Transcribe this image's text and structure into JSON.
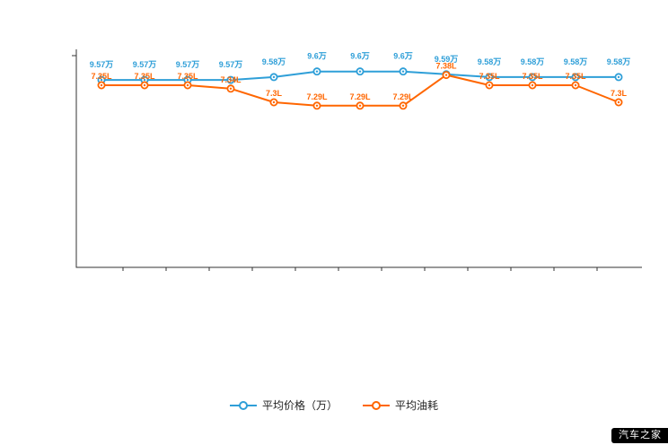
{
  "watermark": {
    "text": "汽车之家"
  },
  "legend": [
    {
      "label": "平均价格（万）",
      "color": "#2f9fd8"
    },
    {
      "label": "平均油耗",
      "color": "#ff6600"
    }
  ],
  "chart_data": {
    "type": "line",
    "title": "",
    "xlabel": "",
    "ylabel": "",
    "grid": false,
    "legend_position": "bottom",
    "x_axis_labels_visible": false,
    "points_count": 13,
    "series": [
      {
        "name": "平均价格（万）",
        "color": "#2f9fd8",
        "unit": "万",
        "ylim": [
          9.5,
          9.65
        ],
        "values": [
          9.57,
          9.57,
          9.57,
          9.57,
          9.58,
          9.6,
          9.6,
          9.6,
          9.59,
          9.58,
          9.58,
          9.58,
          9.58
        ],
        "labels": [
          "9.57万",
          "9.57万",
          "9.57万",
          "9.57万",
          "9.58万",
          "9.6万",
          "9.6万",
          "9.6万",
          "9.59万",
          "9.58万",
          "9.58万",
          "9.58万",
          "9.58万"
        ]
      },
      {
        "name": "平均油耗",
        "color": "#ff6600",
        "unit": "L",
        "ylim": [
          7.25,
          7.45
        ],
        "values": [
          7.35,
          7.35,
          7.35,
          7.34,
          7.3,
          7.29,
          7.29,
          7.29,
          7.38,
          7.35,
          7.35,
          7.35,
          7.3
        ],
        "labels": [
          "7.35L",
          "7.35L",
          "7.35L",
          "7.34L",
          "7.3L",
          "7.29L",
          "7.29L",
          "7.29L",
          "7.38L",
          "7.35L",
          "7.35L",
          "7.35L",
          "7.3L"
        ]
      }
    ]
  }
}
